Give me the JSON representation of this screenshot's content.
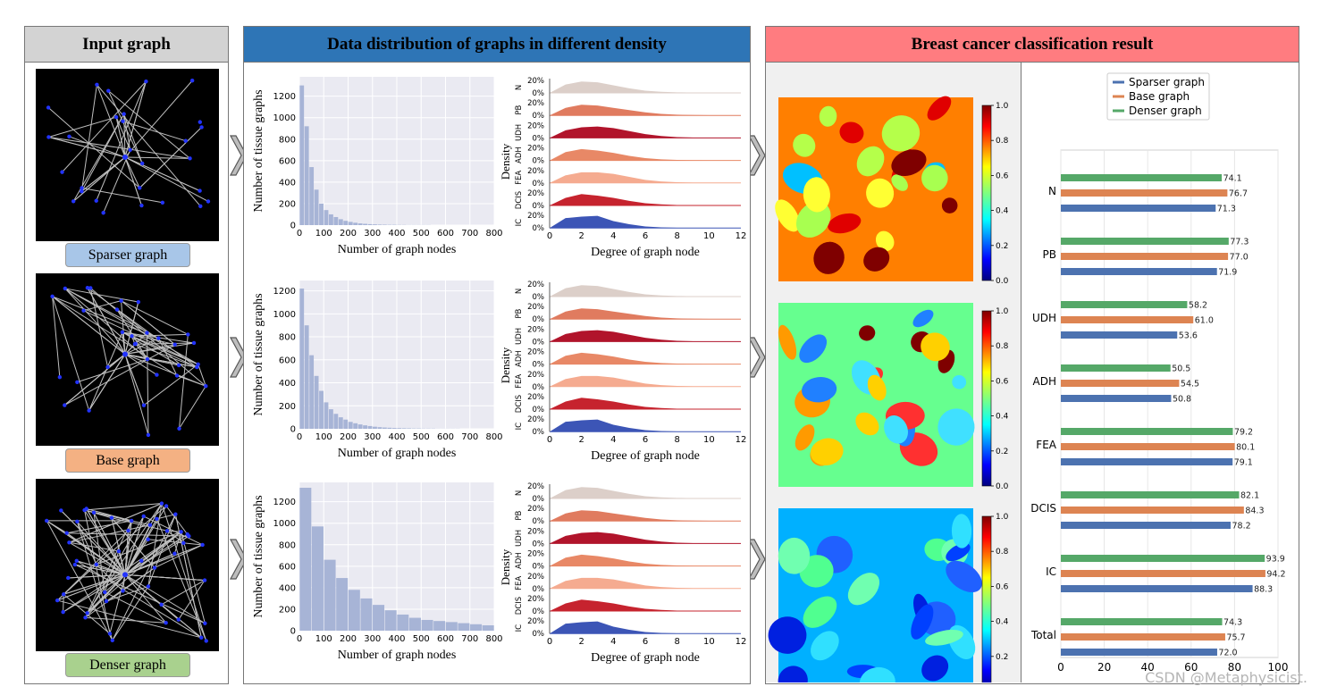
{
  "panels": {
    "input": {
      "title": "Input graph"
    },
    "distribution": {
      "title": "Data distribution of graphs in different density"
    },
    "result": {
      "title": "Breast cancer classification result"
    }
  },
  "graphs": [
    {
      "label": "Sparser graph",
      "label_color": "#a8c6e8"
    },
    {
      "label": "Base graph",
      "label_color": "#f4b183"
    },
    {
      "label": "Denser graph",
      "label_color": "#a9d18e"
    }
  ],
  "histogram_axes": {
    "xlabel": "Number of graph nodes",
    "ylabel": "Number of tissue graphs",
    "xticks": [
      0,
      100,
      200,
      300,
      400,
      500,
      600,
      700,
      800
    ]
  },
  "density_axes": {
    "xlabel": "Degree of graph node",
    "ylabel": "Density",
    "xticks": [
      0,
      2,
      4,
      6,
      8,
      10,
      12
    ],
    "ytick_top": "20%",
    "ytick_bottom": "0%"
  },
  "colorbar": {
    "ticks": [
      "0.0",
      "0.2",
      "0.4",
      "0.6",
      "0.8",
      "1.0"
    ]
  },
  "watermark": "CSDN @Metaphysicist.",
  "chart_data": [
    {
      "type": "bar",
      "name": "sparser-histogram",
      "xlabel": "Number of graph nodes",
      "ylabel": "Number of tissue graphs",
      "bin_width": 20,
      "xlim": [
        0,
        800
      ],
      "ylim": [
        0,
        1380
      ],
      "yticks": [
        0,
        200,
        400,
        600,
        800,
        1000,
        1200
      ],
      "values": [
        1300,
        920,
        540,
        330,
        200,
        140,
        100,
        75,
        55,
        40,
        30,
        22,
        16,
        12,
        9,
        7,
        5,
        4,
        3,
        3,
        2,
        2,
        1,
        1,
        1,
        1,
        1,
        0,
        0,
        0,
        0,
        0,
        0,
        0,
        0,
        0,
        0,
        0,
        0,
        0
      ]
    },
    {
      "type": "bar",
      "name": "base-histogram",
      "xlabel": "Number of graph nodes",
      "ylabel": "Number of tissue graphs",
      "bin_width": 20,
      "xlim": [
        0,
        800
      ],
      "ylim": [
        0,
        1290
      ],
      "yticks": [
        0,
        200,
        400,
        600,
        800,
        1000,
        1200
      ],
      "values": [
        1220,
        900,
        640,
        460,
        330,
        230,
        170,
        130,
        100,
        80,
        60,
        48,
        38,
        30,
        24,
        18,
        14,
        11,
        9,
        7,
        6,
        5,
        4,
        3,
        3,
        2,
        2,
        2,
        1,
        1,
        1,
        1,
        1,
        0,
        0,
        0,
        0,
        0,
        0,
        0
      ]
    },
    {
      "type": "bar",
      "name": "denser-histogram",
      "xlabel": "Number of graph nodes",
      "ylabel": "Number of tissue graphs",
      "bin_width": 50,
      "xlim": [
        0,
        800
      ],
      "ylim": [
        0,
        1380
      ],
      "yticks": [
        0,
        200,
        400,
        600,
        800,
        1000,
        1200
      ],
      "values": [
        1330,
        970,
        660,
        490,
        380,
        300,
        240,
        190,
        150,
        120,
        100,
        90,
        80,
        70,
        60,
        50
      ]
    },
    {
      "type": "area",
      "name": "degree-density",
      "x": [
        0,
        1,
        2,
        3,
        4,
        5,
        6,
        7,
        8,
        9,
        10,
        11,
        12
      ],
      "ylim": [
        0,
        20
      ],
      "series": [
        {
          "name": "N",
          "color": "#dccfc9",
          "values": [
            0,
            11,
            15,
            14,
            10,
            6,
            3,
            1.5,
            0.8,
            0.4,
            0.2,
            0.1,
            0
          ]
        },
        {
          "name": "PB",
          "color": "#e07b5f",
          "values": [
            0,
            10,
            14,
            13,
            10,
            7,
            4,
            2,
            1,
            0.5,
            0.2,
            0.1,
            0
          ]
        },
        {
          "name": "UDH",
          "color": "#b1142b",
          "values": [
            0,
            10,
            14,
            15,
            13,
            9,
            5,
            2.5,
            1,
            0.5,
            0.2,
            0.1,
            0
          ]
        },
        {
          "name": "ADH",
          "color": "#e88866",
          "values": [
            0,
            11,
            15,
            13,
            10,
            6,
            3,
            1.5,
            0.7,
            0.3,
            0.1,
            0,
            0
          ]
        },
        {
          "name": "FEA",
          "color": "#f5ab90",
          "values": [
            0,
            10,
            14,
            14,
            12,
            8,
            4,
            2,
            1,
            0.4,
            0.2,
            0.1,
            0
          ]
        },
        {
          "name": "DCIS",
          "color": "#c6232e",
          "values": [
            0,
            10,
            15,
            13,
            10,
            6,
            3,
            1.5,
            0.6,
            0.3,
            0.1,
            0,
            0
          ]
        },
        {
          "name": "IC",
          "color": "#3c55b6",
          "values": [
            0,
            13,
            15,
            16,
            9,
            5,
            2,
            0.8,
            0.3,
            0.1,
            0,
            0,
            0
          ]
        }
      ]
    },
    {
      "type": "bar",
      "name": "classification-result",
      "orientation": "horizontal",
      "categories": [
        "N",
        "PB",
        "UDH",
        "ADH",
        "FEA",
        "DCIS",
        "IC",
        "Total"
      ],
      "xlim": [
        0,
        100
      ],
      "xticks": [
        0,
        20,
        40,
        60,
        80,
        100
      ],
      "legend_placement": "top",
      "series": [
        {
          "name": "Sparser graph",
          "color": "#4c72b0",
          "values": [
            71.3,
            71.9,
            53.6,
            50.8,
            79.1,
            78.2,
            88.3,
            72.0
          ]
        },
        {
          "name": "Base graph",
          "color": "#dd8452",
          "values": [
            76.7,
            77.0,
            61.0,
            54.5,
            80.1,
            84.3,
            94.2,
            75.7
          ]
        },
        {
          "name": "Denser graph",
          "color": "#55a868",
          "values": [
            74.1,
            77.3,
            58.2,
            50.5,
            79.2,
            82.1,
            93.9,
            74.3
          ]
        }
      ],
      "value_labels": [
        [
          "71.3",
          "71.9",
          "53.6",
          "50.8",
          "79.1",
          "78.2",
          "88.3",
          "72.0"
        ],
        [
          "76.7",
          "77.0",
          "61.0",
          "54.5",
          "80.1",
          "84.3",
          "94.2",
          "75.7"
        ],
        [
          "74.1",
          "77.3",
          "58.2",
          "50.5",
          "79.2",
          "82.1",
          "93.9",
          "74.3"
        ]
      ]
    }
  ]
}
